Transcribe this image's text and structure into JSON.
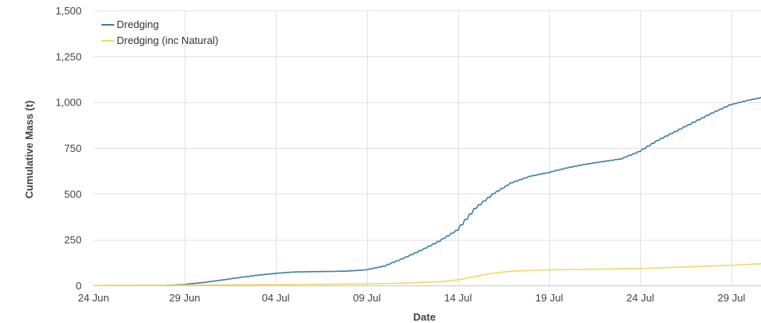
{
  "chart_data": {
    "type": "line",
    "title": "",
    "xlabel": "Date",
    "ylabel": "Cumulative Mass (t)",
    "x_tick_labels": [
      "24 Jun",
      "29 Jun",
      "04 Jul",
      "09 Jul",
      "14 Jul",
      "19 Jul",
      "24 Jul",
      "29 Jul"
    ],
    "x_tick_dates": [
      "2020-06-24",
      "2020-06-29",
      "2020-07-04",
      "2020-07-09",
      "2020-07-14",
      "2020-07-19",
      "2020-07-24",
      "2020-07-29"
    ],
    "y_tick_labels": [
      "0",
      "250",
      "500",
      "750",
      "1,000",
      "1,250",
      "1,500"
    ],
    "y_tick_values": [
      0,
      250,
      500,
      750,
      1000,
      1250,
      1500
    ],
    "ylim": [
      0,
      1500
    ],
    "xlim": [
      "2020-06-24",
      "2020-07-31"
    ],
    "grid": true,
    "legend_position": "top-left",
    "series": [
      {
        "name": "Dredging",
        "color": "#3f7ea6",
        "stepped": true,
        "x": [
          "2020-06-28",
          "2020-06-29",
          "2020-06-30",
          "2020-07-01",
          "2020-07-02",
          "2020-07-03",
          "2020-07-04",
          "2020-07-05",
          "2020-07-06",
          "2020-07-07",
          "2020-07-08",
          "2020-07-09",
          "2020-07-10",
          "2020-07-11",
          "2020-07-12",
          "2020-07-13",
          "2020-07-14",
          "2020-07-15",
          "2020-07-16",
          "2020-07-17",
          "2020-07-18",
          "2020-07-19",
          "2020-07-20",
          "2020-07-21",
          "2020-07-22",
          "2020-07-23",
          "2020-07-24",
          "2020-07-25",
          "2020-07-26",
          "2020-07-27",
          "2020-07-28",
          "2020-07-29",
          "2020-07-30",
          "2020-07-31"
        ],
        "y": [
          0,
          5,
          15,
          28,
          42,
          55,
          65,
          73,
          75,
          76,
          78,
          85,
          105,
          145,
          190,
          240,
          300,
          420,
          500,
          560,
          595,
          615,
          640,
          660,
          675,
          690,
          730,
          790,
          840,
          890,
          940,
          985,
          1010,
          1030
        ]
      },
      {
        "name": "Dredging (inc Natural)",
        "color": "#eed96a",
        "stepped": false,
        "x": [
          "2020-06-24",
          "2020-06-29",
          "2020-07-04",
          "2020-07-09",
          "2020-07-11",
          "2020-07-13",
          "2020-07-14",
          "2020-07-15",
          "2020-07-16",
          "2020-07-17",
          "2020-07-19",
          "2020-07-24",
          "2020-07-29",
          "2020-07-31"
        ],
        "y": [
          0,
          2,
          5,
          8,
          12,
          20,
          30,
          50,
          68,
          78,
          85,
          92,
          110,
          120
        ]
      }
    ]
  }
}
